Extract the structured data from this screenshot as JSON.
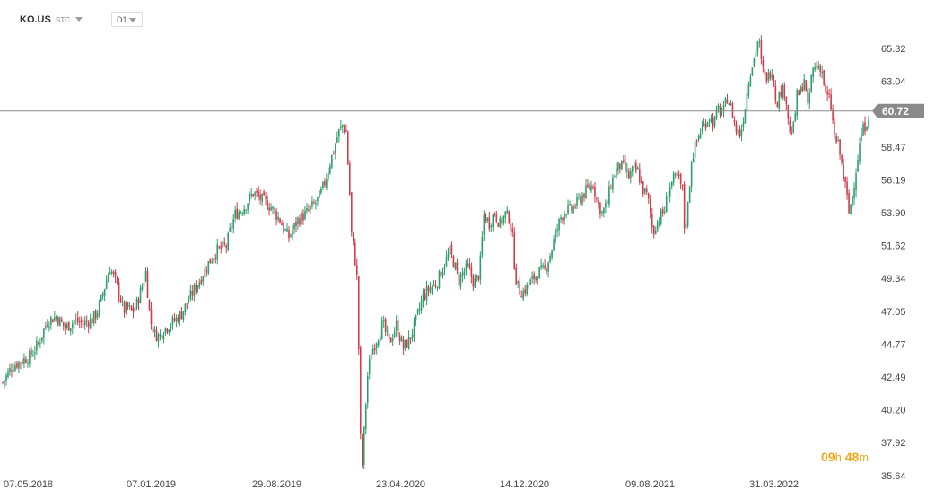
{
  "header": {
    "symbol": "KO.US",
    "instrument_type": "STC",
    "timeframe": "D1"
  },
  "countdown": {
    "hours": "09",
    "hours_unit": "h",
    "minutes": "48",
    "minutes_unit": "m"
  },
  "colors": {
    "up": "#2e9e6b",
    "down": "#d13b4a",
    "price_line": "#8a8a8a",
    "price_tag_bg": "#8a8a8a",
    "countdown": "#f2a81d"
  },
  "chart_data": {
    "type": "candlestick",
    "y_ticks": [
      "65.32",
      "63.04",
      "60.72",
      "58.47",
      "56.19",
      "53.90",
      "51.62",
      "49.34",
      "47.05",
      "44.77",
      "42.49",
      "40.20",
      "37.92",
      "35.64"
    ],
    "x_ticks": [
      "07.05.2018",
      "07.01.2019",
      "29.08.2019",
      "23.04.2020",
      "14.12.2020",
      "09.08.2021",
      "31.03.2022"
    ],
    "ylim": [
      35.64,
      67.0
    ],
    "current_price": 60.72,
    "grid": false,
    "series": [
      {
        "values": [
          [
            0,
            42.1
          ],
          [
            10,
            43.2
          ],
          [
            20,
            43.6
          ],
          [
            30,
            43.9
          ],
          [
            40,
            44.8
          ],
          [
            50,
            46.4
          ],
          [
            60,
            46.7
          ],
          [
            70,
            45.9
          ],
          [
            80,
            46.4
          ],
          [
            90,
            46.2
          ],
          [
            100,
            46.5
          ],
          [
            105,
            46.9
          ],
          [
            110,
            47.8
          ],
          [
            115,
            49.0
          ],
          [
            120,
            50.1
          ],
          [
            125,
            49.3
          ],
          [
            130,
            48.4
          ],
          [
            135,
            47.1
          ],
          [
            140,
            47.3
          ],
          [
            145,
            47.0
          ],
          [
            150,
            47.6
          ],
          [
            155,
            48.6
          ],
          [
            160,
            49.8
          ],
          [
            165,
            46.4
          ],
          [
            170,
            45.5
          ],
          [
            175,
            45.3
          ],
          [
            180,
            45.8
          ],
          [
            190,
            46.3
          ],
          [
            200,
            46.9
          ],
          [
            210,
            48.1
          ],
          [
            220,
            49.2
          ],
          [
            230,
            50.4
          ],
          [
            240,
            51.3
          ],
          [
            250,
            51.6
          ],
          [
            255,
            52.8
          ],
          [
            260,
            53.8
          ],
          [
            270,
            54.3
          ],
          [
            280,
            55.3
          ],
          [
            290,
            54.8
          ],
          [
            300,
            54.3
          ],
          [
            310,
            53.4
          ],
          [
            315,
            52.7
          ],
          [
            320,
            52.2
          ],
          [
            330,
            53.4
          ],
          [
            340,
            53.9
          ],
          [
            350,
            54.6
          ],
          [
            355,
            55.1
          ],
          [
            360,
            56.0
          ],
          [
            365,
            57.2
          ],
          [
            370,
            58.2
          ],
          [
            375,
            59.4
          ],
          [
            380,
            60.0
          ],
          [
            384,
            59.5
          ],
          [
            388,
            55.2
          ],
          [
            390,
            52.4
          ],
          [
            393,
            51.2
          ],
          [
            396,
            49.4
          ],
          [
            398,
            44.5
          ],
          [
            400,
            38.2
          ],
          [
            402,
            36.4
          ],
          [
            405,
            39.8
          ],
          [
            408,
            42.6
          ],
          [
            412,
            44.2
          ],
          [
            418,
            45.1
          ],
          [
            425,
            46.2
          ],
          [
            432,
            44.8
          ],
          [
            440,
            46.1
          ],
          [
            448,
            44.5
          ],
          [
            455,
            45.1
          ],
          [
            462,
            46.4
          ],
          [
            470,
            48.1
          ],
          [
            478,
            48.7
          ],
          [
            485,
            49.0
          ],
          [
            492,
            50.1
          ],
          [
            500,
            51.2
          ],
          [
            505,
            50.3
          ],
          [
            510,
            49.2
          ],
          [
            515,
            49.8
          ],
          [
            520,
            50.1
          ],
          [
            527,
            49.0
          ],
          [
            533,
            49.7
          ],
          [
            538,
            53.7
          ],
          [
            544,
            53.2
          ],
          [
            550,
            53.9
          ],
          [
            556,
            53.1
          ],
          [
            562,
            53.8
          ],
          [
            567,
            53.5
          ],
          [
            570,
            52.1
          ],
          [
            573,
            49.6
          ],
          [
            577,
            48.5
          ],
          [
            582,
            48.4
          ],
          [
            588,
            48.9
          ],
          [
            594,
            49.4
          ],
          [
            600,
            49.8
          ],
          [
            606,
            49.9
          ],
          [
            612,
            51.0
          ],
          [
            618,
            52.4
          ],
          [
            624,
            53.6
          ],
          [
            630,
            54.1
          ],
          [
            636,
            54.1
          ],
          [
            642,
            54.6
          ],
          [
            648,
            55.1
          ],
          [
            655,
            55.6
          ],
          [
            660,
            55.9
          ],
          [
            665,
            54.6
          ],
          [
            670,
            53.9
          ],
          [
            675,
            54.4
          ],
          [
            680,
            55.9
          ],
          [
            685,
            56.8
          ],
          [
            690,
            57.2
          ],
          [
            695,
            57.0
          ],
          [
            700,
            56.4
          ],
          [
            705,
            56.9
          ],
          [
            710,
            56.8
          ],
          [
            715,
            55.6
          ],
          [
            720,
            55.1
          ],
          [
            723,
            54.4
          ],
          [
            727,
            52.4
          ],
          [
            730,
            53.1
          ],
          [
            735,
            53.6
          ],
          [
            740,
            54.1
          ],
          [
            745,
            55.7
          ],
          [
            750,
            56.2
          ],
          [
            755,
            56.3
          ],
          [
            760,
            55.5
          ],
          [
            762,
            52.9
          ],
          [
            765,
            53.6
          ],
          [
            770,
            57.6
          ],
          [
            775,
            58.7
          ],
          [
            780,
            59.6
          ],
          [
            785,
            60.1
          ],
          [
            790,
            60.6
          ],
          [
            795,
            60.1
          ],
          [
            800,
            61.1
          ],
          [
            805,
            60.8
          ],
          [
            810,
            61.9
          ],
          [
            815,
            61.0
          ],
          [
            820,
            59.6
          ],
          [
            825,
            59.4
          ],
          [
            830,
            61.3
          ],
          [
            835,
            63.6
          ],
          [
            840,
            64.6
          ],
          [
            845,
            66.1
          ],
          [
            848,
            64.3
          ],
          [
            852,
            63.3
          ],
          [
            856,
            63.4
          ],
          [
            860,
            63.9
          ],
          [
            865,
            61.5
          ],
          [
            870,
            62.4
          ],
          [
            875,
            62.3
          ],
          [
            880,
            59.4
          ],
          [
            884,
            59.8
          ],
          [
            888,
            62.0
          ],
          [
            892,
            62.3
          ],
          [
            896,
            63.3
          ],
          [
            900,
            61.1
          ],
          [
            905,
            63.8
          ],
          [
            910,
            64.1
          ],
          [
            915,
            64.1
          ],
          [
            920,
            62.1
          ],
          [
            925,
            61.7
          ],
          [
            930,
            59.2
          ],
          [
            935,
            58.4
          ],
          [
            940,
            56.4
          ],
          [
            943,
            55.4
          ],
          [
            946,
            53.9
          ],
          [
            950,
            55.1
          ],
          [
            955,
            57.4
          ],
          [
            960,
            59.4
          ],
          [
            965,
            60.1
          ],
          [
            968,
            60.7
          ]
        ]
      }
    ]
  }
}
